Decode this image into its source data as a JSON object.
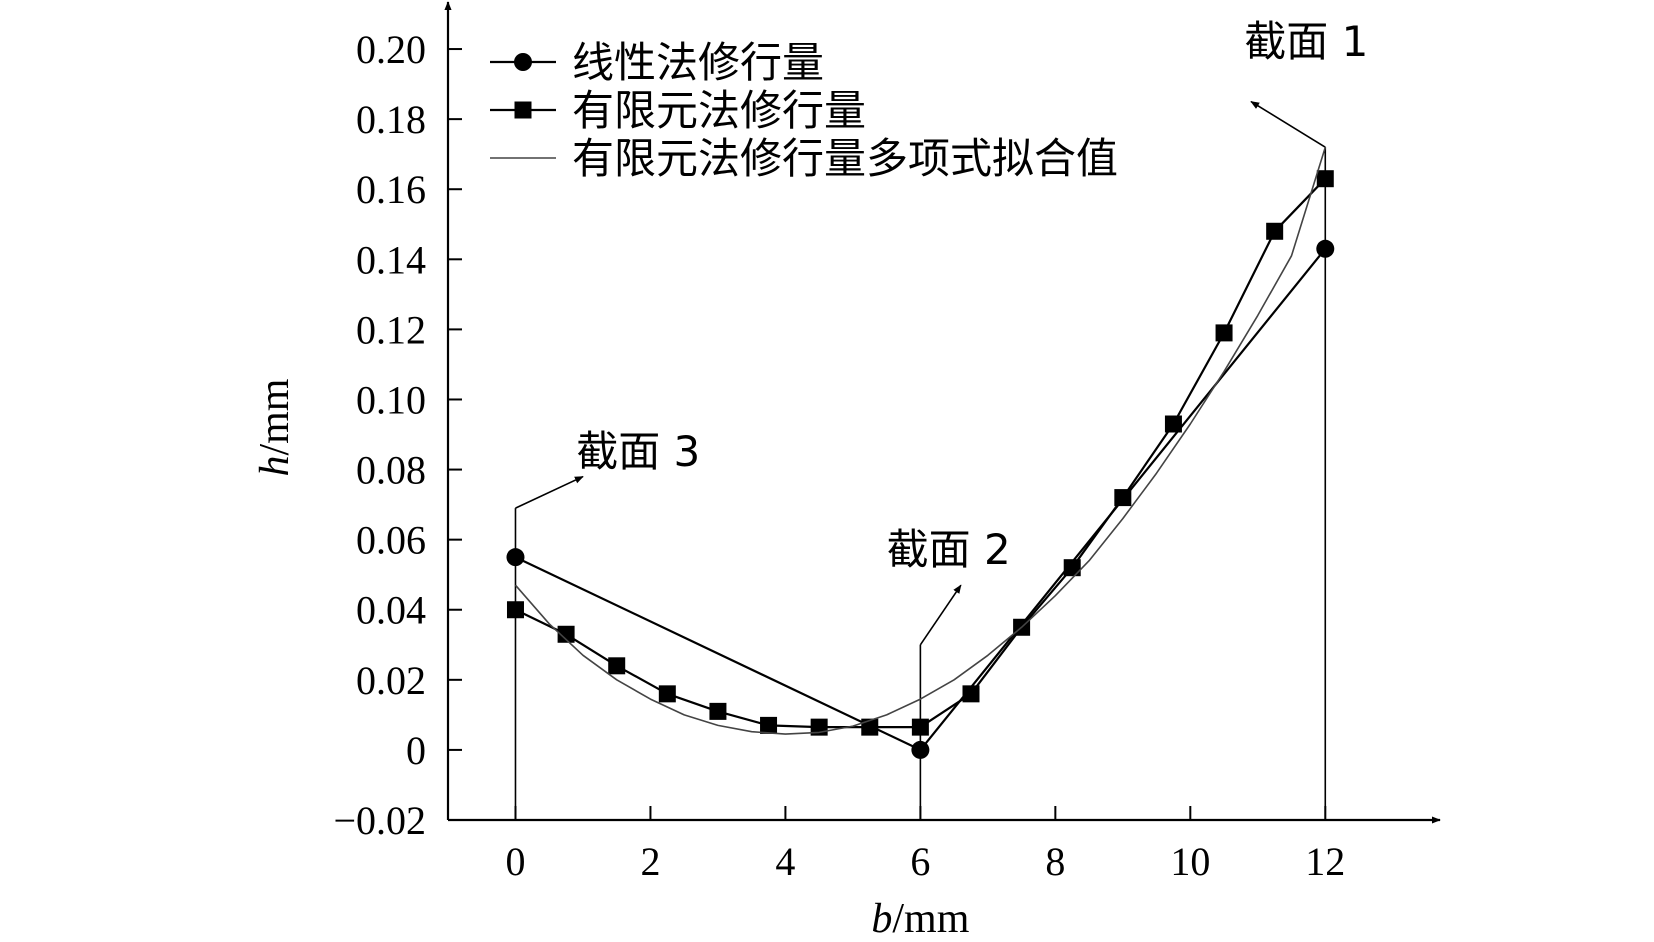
{
  "chart_data": {
    "type": "line",
    "xlabel": {
      "italic": "b",
      "unit": "/mm"
    },
    "ylabel": {
      "italic": "h",
      "unit": "/mm"
    },
    "xlim": [
      -1,
      13.7
    ],
    "ylim": [
      -0.02,
      0.21
    ],
    "x_ticks": [
      0,
      2,
      4,
      6,
      8,
      10,
      12
    ],
    "x_tick_labels": [
      "0",
      "2",
      "4",
      "6",
      "8",
      "10",
      "12"
    ],
    "y_ticks": [
      -0.02,
      0,
      0.02,
      0.04,
      0.06,
      0.08,
      0.1,
      0.12,
      0.14,
      0.16,
      0.18,
      0.2
    ],
    "y_tick_labels": [
      "−0.02",
      "0",
      "0.02",
      "0.04",
      "0.06",
      "0.08",
      "0.10",
      "0.12",
      "0.14",
      "0.16",
      "0.18",
      "0.20"
    ],
    "grid": false,
    "legend_position": "top-left",
    "series": [
      {
        "name": "线性法修行量",
        "marker": "circle",
        "x": [
          0,
          6,
          12
        ],
        "y": [
          0.055,
          0,
          0.143
        ]
      },
      {
        "name": "有限元法修行量",
        "marker": "square",
        "x": [
          0,
          0.75,
          1.5,
          2.25,
          3,
          3.75,
          4.5,
          5.25,
          6,
          6.75,
          7.5,
          8.25,
          9,
          9.75,
          10.5,
          11.25,
          12
        ],
        "y": [
          0.04,
          0.033,
          0.024,
          0.016,
          0.011,
          0.007,
          0.0065,
          0.0065,
          0.0065,
          0.016,
          0.035,
          0.052,
          0.072,
          0.093,
          0.119,
          0.148,
          0.163
        ]
      },
      {
        "name": "有限元法修行量多项式拟合值",
        "marker": "none",
        "x": [
          0,
          0.5,
          1,
          1.5,
          2,
          2.5,
          3,
          3.5,
          4,
          4.5,
          5,
          5.5,
          6,
          6.5,
          7,
          7.5,
          8,
          8.5,
          9,
          9.5,
          10,
          10.5,
          11,
          11.5,
          12
        ],
        "y": [
          0.047,
          0.036,
          0.027,
          0.02,
          0.0145,
          0.01,
          0.007,
          0.0052,
          0.0045,
          0.005,
          0.0068,
          0.01,
          0.0145,
          0.02,
          0.027,
          0.035,
          0.044,
          0.054,
          0.066,
          0.079,
          0.093,
          0.108,
          0.124,
          0.141,
          0.172
        ]
      }
    ],
    "annotations": [
      {
        "text": "截面 1",
        "x": 12,
        "y_top": 0.172,
        "arrow_to": [
          10.9,
          0.185
        ],
        "label_at": [
          10.8,
          0.198
        ]
      },
      {
        "text": "截面 2",
        "x": 6,
        "y_top": 0.03,
        "arrow_to": [
          6.6,
          0.047
        ],
        "label_at": [
          5.5,
          0.053
        ]
      },
      {
        "text": "截面 3",
        "x": 0,
        "y_top": 0.069,
        "arrow_to": [
          1,
          0.078
        ],
        "label_at": [
          0.9,
          0.081
        ]
      }
    ]
  }
}
